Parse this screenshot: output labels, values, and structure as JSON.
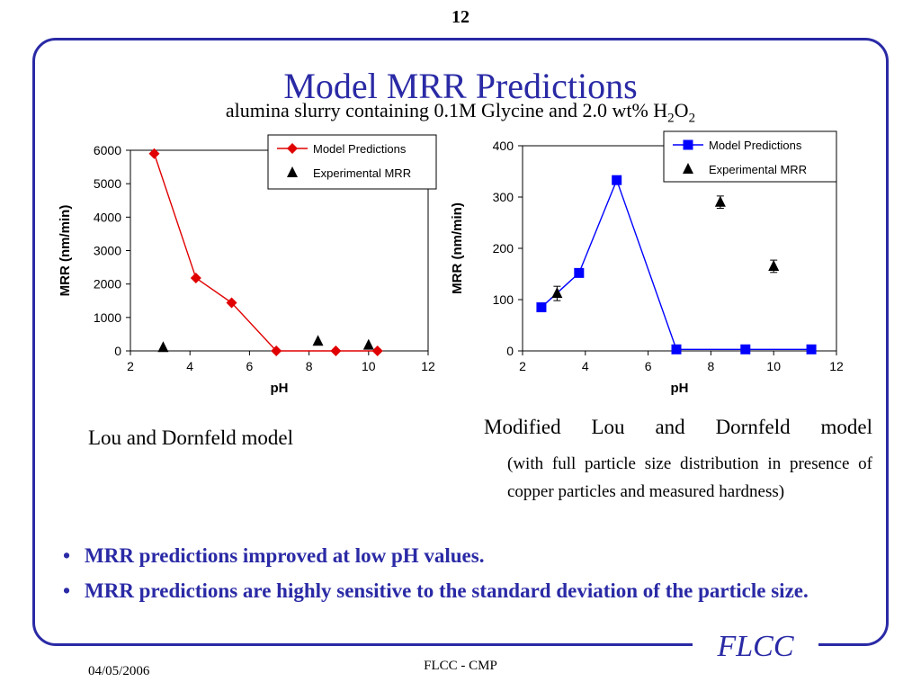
{
  "page_number": "12",
  "title": "Model MRR Predictions",
  "subtitle": {
    "text": "alumina slurry containing 0.1M Glycine and 2.0 wt% H",
    "sub1": "2",
    "mid": "O",
    "sub2": "2"
  },
  "colors": {
    "accent": "#2a2aa6",
    "red": "#e00000",
    "blue": "#0000ff"
  },
  "captions": {
    "left": "Lou and Dornfeld model",
    "right_line1": "Modified Lou and Dornfeld model",
    "right_line2": "(with full particle size distribution in presence of copper particles and measured hardness)"
  },
  "bullets": [
    "MRR predictions improved at low pH values.",
    "MRR predictions are highly sensitive to the standard deviation of the particle size."
  ],
  "footer": {
    "date": "04/05/2006",
    "center": "FLCC - CMP",
    "logo": "FLCC"
  },
  "chart_data": [
    {
      "type": "line",
      "color": "#e00000",
      "xlabel": "pH",
      "ylabel": "MRR (nm/min)",
      "xlim": [
        2,
        12
      ],
      "ylim": [
        0,
        6000
      ],
      "xticks": [
        2,
        4,
        6,
        8,
        10,
        12
      ],
      "yticks": [
        0,
        1000,
        2000,
        3000,
        4000,
        5000,
        6000
      ],
      "legend_position": "top-right",
      "series": [
        {
          "name": "Model Predictions",
          "marker": "diamond",
          "color": "#e00000",
          "x": [
            2.8,
            4.2,
            5.4,
            6.9,
            8.9,
            10.3
          ],
          "y": [
            5900,
            2180,
            1440,
            0,
            0,
            0
          ]
        },
        {
          "name": "Experimental MRR",
          "marker": "triangle",
          "color": "#000000",
          "line": false,
          "x": [
            3.1,
            8.3,
            10.0
          ],
          "y": [
            100,
            290,
            170
          ]
        }
      ]
    },
    {
      "type": "line",
      "color": "#0000ff",
      "xlabel": "pH",
      "ylabel": "MRR (nm/min)",
      "xlim": [
        2,
        12
      ],
      "ylim": [
        0,
        400
      ],
      "xticks": [
        2,
        4,
        6,
        8,
        10,
        12
      ],
      "yticks": [
        0,
        100,
        200,
        300,
        400
      ],
      "legend_position": "top-right",
      "series": [
        {
          "name": "Model Predictions",
          "marker": "square",
          "color": "#0000ff",
          "x": [
            2.6,
            3.8,
            5.0,
            6.9,
            9.1,
            11.2
          ],
          "y": [
            85,
            152,
            333,
            3,
            3,
            3
          ]
        },
        {
          "name": "Experimental MRR",
          "marker": "triangle",
          "color": "#000000",
          "line": false,
          "error_bars": true,
          "x": [
            3.1,
            8.3,
            10.0
          ],
          "y": [
            112,
            290,
            165
          ],
          "err": [
            14,
            12,
            12
          ]
        }
      ]
    }
  ]
}
